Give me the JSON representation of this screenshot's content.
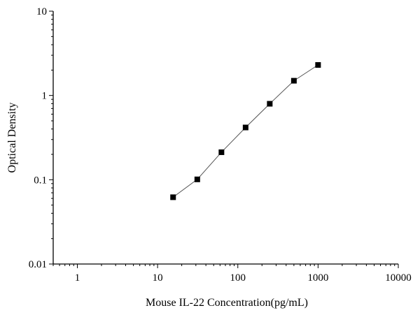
{
  "chart_data": {
    "type": "scatter",
    "x_scale": "log",
    "y_scale": "log",
    "xlabel": "Mouse IL-22 Concentration(pg/mL)",
    "ylabel": "Optical Density",
    "xlim": [
      0.5,
      10000
    ],
    "ylim": [
      0.01,
      10
    ],
    "x_ticks": [
      {
        "value": 1,
        "label": "1"
      },
      {
        "value": 10,
        "label": "10"
      },
      {
        "value": 100,
        "label": "100"
      },
      {
        "value": 1000,
        "label": "1000"
      },
      {
        "value": 10000,
        "label": "10000"
      }
    ],
    "y_ticks": [
      {
        "value": 0.01,
        "label": "0.01"
      },
      {
        "value": 0.1,
        "label": "0.1"
      },
      {
        "value": 1,
        "label": "1"
      },
      {
        "value": 10,
        "label": "10"
      }
    ],
    "grid": false,
    "series": [
      {
        "x": [
          15.6,
          31.25,
          62.5,
          125,
          250,
          500,
          1000
        ],
        "y": [
          0.062,
          0.101,
          0.212,
          0.417,
          0.797,
          1.495,
          2.301
        ],
        "marker": "square",
        "line": true,
        "color": "#000000",
        "line_color": "#555555"
      }
    ]
  }
}
